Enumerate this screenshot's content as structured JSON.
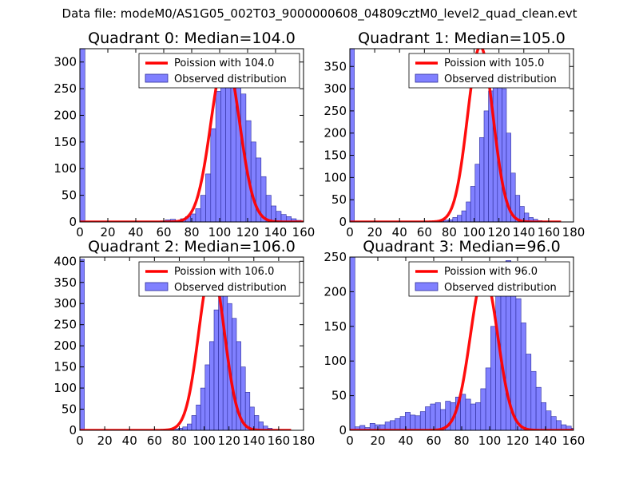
{
  "figure": {
    "suptitle": "Data file: modeM0/AS1G05_002T03_9000000608_04809cztM0_level2_quad_clean.evt"
  },
  "colors": {
    "bar_fill": "#8080ff",
    "bar_edge": "#2a2a9a",
    "fit_line": "#ff0000",
    "axis": "#000000"
  },
  "chart_data": [
    {
      "type": "bar",
      "title": "Quadrant 0: Median=104.0",
      "xlim": [
        0,
        160
      ],
      "ylim": [
        0,
        325
      ],
      "xticks": [
        0,
        20,
        40,
        60,
        80,
        100,
        120,
        140,
        160
      ],
      "yticks": [
        0,
        50,
        100,
        150,
        200,
        250,
        300
      ],
      "bin_width": 3.6,
      "bin_start": 0,
      "values": [
        325,
        0,
        0,
        0,
        0,
        0,
        0,
        0,
        0,
        0,
        0,
        0,
        0,
        0,
        0,
        0,
        2,
        4,
        5,
        3,
        6,
        10,
        15,
        25,
        50,
        90,
        175,
        245,
        285,
        300,
        295,
        270,
        240,
        190,
        150,
        120,
        85,
        50,
        30,
        20,
        14,
        10,
        6,
        3,
        0
      ],
      "legend": [
        "Poission with 104.0",
        "Observed distribution"
      ],
      "fit": {
        "label": "Poission with 104.0",
        "mean": 104.0,
        "peak": 310
      }
    },
    {
      "type": "bar",
      "title": "Quadrant 1: Median=105.0",
      "xlim": [
        0,
        180
      ],
      "ylim": [
        0,
        390
      ],
      "xticks": [
        0,
        20,
        40,
        60,
        80,
        100,
        120,
        140,
        160,
        180
      ],
      "yticks": [
        0,
        50,
        100,
        150,
        200,
        250,
        300,
        350
      ],
      "bin_width": 3.6,
      "bin_start": 0,
      "values": [
        390,
        0,
        0,
        0,
        0,
        0,
        0,
        0,
        0,
        0,
        0,
        0,
        0,
        0,
        0,
        0,
        0,
        0,
        0,
        0,
        2,
        4,
        5,
        10,
        15,
        25,
        45,
        80,
        130,
        190,
        250,
        295,
        325,
        345,
        300,
        200,
        110,
        60,
        35,
        20,
        10,
        6,
        3,
        1,
        0,
        0,
        0,
        0
      ],
      "legend": [
        "Poission with 105.0",
        "Observed distribution"
      ],
      "fit": {
        "label": "Poission with 105.0",
        "mean": 105.0,
        "peak": 395
      }
    },
    {
      "type": "bar",
      "title": "Quadrant 2: Median=106.0",
      "xlim": [
        0,
        180
      ],
      "ylim": [
        0,
        410
      ],
      "xticks": [
        0,
        20,
        40,
        60,
        80,
        100,
        120,
        140,
        160,
        180
      ],
      "yticks": [
        0,
        50,
        100,
        150,
        200,
        250,
        300,
        350,
        400
      ],
      "bin_width": 3.6,
      "bin_start": 0,
      "values": [
        405,
        0,
        0,
        0,
        0,
        0,
        0,
        0,
        0,
        0,
        0,
        0,
        0,
        0,
        0,
        0,
        0,
        0,
        0,
        0,
        0,
        3,
        5,
        8,
        15,
        35,
        60,
        100,
        155,
        210,
        285,
        320,
        325,
        300,
        265,
        210,
        150,
        90,
        55,
        35,
        20,
        10,
        5,
        2,
        1,
        0
      ],
      "legend": [
        "Poission with 106.0",
        "Observed distribution"
      ],
      "fit": {
        "label": "Poission with 106.0",
        "mean": 106.0,
        "peak": 385
      }
    },
    {
      "type": "bar",
      "title": "Quadrant 3: Median=96.0",
      "xlim": [
        0,
        160
      ],
      "ylim": [
        0,
        250
      ],
      "xticks": [
        0,
        20,
        40,
        60,
        80,
        100,
        120,
        140,
        160
      ],
      "yticks": [
        0,
        50,
        100,
        150,
        200,
        250
      ],
      "bin_width": 3.6,
      "bin_start": 0,
      "values": [
        250,
        5,
        7,
        4,
        10,
        8,
        8,
        12,
        14,
        17,
        20,
        26,
        22,
        21,
        27,
        34,
        38,
        40,
        30,
        42,
        40,
        48,
        52,
        45,
        38,
        40,
        60,
        90,
        150,
        200,
        235,
        245,
        225,
        190,
        155,
        110,
        85,
        62,
        40,
        28,
        20,
        14,
        8,
        6,
        3
      ],
      "legend": [
        "Poission with 96.0",
        "Observed distribution"
      ],
      "fit": {
        "label": "Poission with 96.0",
        "mean": 96.0,
        "peak": 225
      }
    }
  ]
}
